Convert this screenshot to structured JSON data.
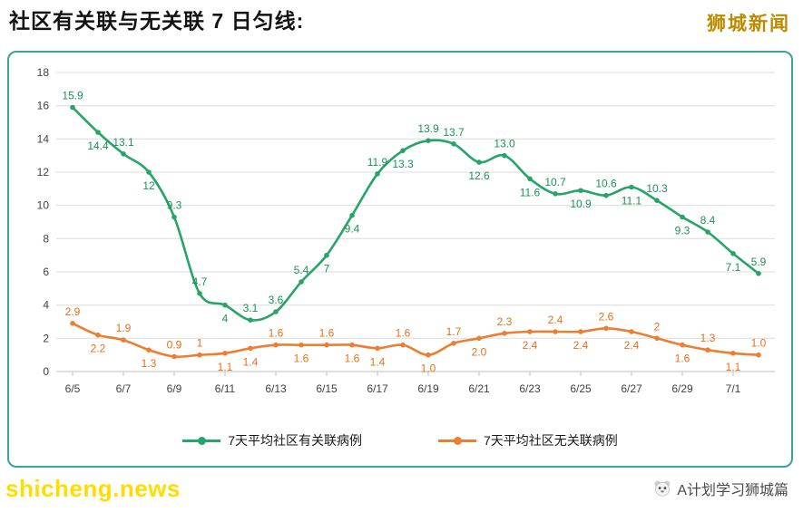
{
  "page": {
    "title": "社区有关联与无关联 7 日匀线:",
    "brand": "狮城新闻",
    "watermark": "shicheng.news",
    "credit": "A计划学习狮城篇"
  },
  "chart_data": {
    "type": "line",
    "title": "社区有关联与无关联 7 日匀线",
    "xlabel": "",
    "ylabel": "",
    "ylim": [
      0,
      18
    ],
    "y_ticks": [
      0,
      2,
      4,
      6,
      8,
      10,
      12,
      14,
      16,
      18
    ],
    "grid": "horizontal",
    "legend_position": "bottom",
    "x_tick_labels": [
      "6/5",
      "6/7",
      "6/9",
      "6/11",
      "6/13",
      "6/15",
      "6/17",
      "6/19",
      "6/21",
      "6/23",
      "6/25",
      "6/27",
      "6/29",
      "7/1"
    ],
    "categories": [
      "6/5",
      "6/6",
      "6/7",
      "6/8",
      "6/9",
      "6/10",
      "6/11",
      "6/12",
      "6/13",
      "6/14",
      "6/15",
      "6/16",
      "6/17",
      "6/18",
      "6/19",
      "6/20",
      "6/21",
      "6/22",
      "6/23",
      "6/24",
      "6/25",
      "6/26",
      "6/27",
      "6/28",
      "6/29",
      "6/30",
      "7/1",
      "7/2"
    ],
    "series": [
      {
        "name": "7天平均社区有关联病例",
        "color": "#27A468",
        "label_color": "#1C9257",
        "values": [
          15.9,
          14.4,
          13.1,
          12,
          9.3,
          4.7,
          4,
          3.1,
          3.6,
          5.4,
          7,
          9.4,
          11.9,
          13.3,
          13.9,
          13.7,
          12.6,
          13.0,
          11.6,
          10.7,
          10.9,
          10.6,
          11.1,
          10.3,
          9.3,
          8.4,
          7.1,
          5.9
        ],
        "labels": [
          "15.9",
          "14.4",
          "13.1",
          "12",
          "9.3",
          "4.7",
          "4",
          "3.1",
          "3.6",
          "5.4",
          "7",
          "9.4",
          "11.9",
          "13.3",
          "13.9",
          "13.7",
          "12.6",
          "13.0",
          "11.6",
          "10.7",
          "10.9",
          "10.6",
          "11.1",
          "10.3",
          "9.3",
          "8.4",
          "7.1",
          "5.9"
        ],
        "label_pos": [
          "a",
          "b",
          "a",
          "b",
          "a",
          "a",
          "b",
          "a",
          "a",
          "a",
          "b",
          "b",
          "a",
          "b",
          "a",
          "a",
          "b",
          "a",
          "b",
          "a",
          "b",
          "a",
          "b",
          "a",
          "b",
          "a",
          "b",
          "a"
        ]
      },
      {
        "name": "7天平均社区无关联病例",
        "color": "#ED7D31",
        "label_color": "#E8701A",
        "values": [
          2.9,
          2.2,
          1.9,
          1.3,
          0.9,
          1,
          1.1,
          1.4,
          1.6,
          1.6,
          1.6,
          1.6,
          1.4,
          1.6,
          1.0,
          1.7,
          2.0,
          2.3,
          2.4,
          2.4,
          2.4,
          2.6,
          2.4,
          2,
          1.6,
          1.3,
          1.1,
          1.0
        ],
        "labels": [
          "2.9",
          "2.2",
          "1.9",
          "1.3",
          "0.9",
          "1",
          "1.1",
          "1.4",
          "1.6",
          "1.6",
          "1.6",
          "1.6",
          "1.4",
          "1.6",
          "1.0",
          "1.7",
          "2.0",
          "2.3",
          "2.4",
          "2.4",
          "2.4",
          "2.6",
          "2.4",
          "2",
          "1.6",
          "1.3",
          "1.1",
          "1.0"
        ],
        "label_pos": [
          "a",
          "b",
          "a",
          "b",
          "a",
          "a",
          "b",
          "b",
          "a",
          "b",
          "a",
          "b",
          "b",
          "a",
          "b",
          "a",
          "b",
          "a",
          "b",
          "a",
          "b",
          "a",
          "b",
          "a",
          "b",
          "a",
          "b",
          "a"
        ]
      }
    ]
  }
}
